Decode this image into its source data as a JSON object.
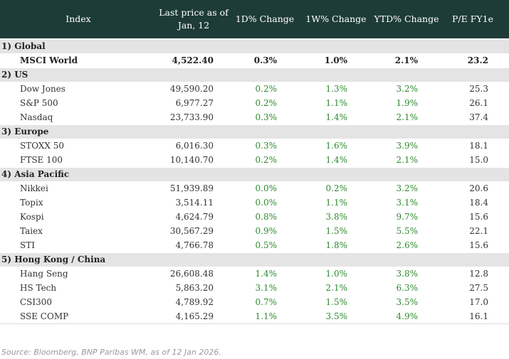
{
  "header": {
    "columns": [
      "Index",
      "Last price as of Jan, 12",
      "1D% Change",
      "1W% Change",
      "YTD% Change",
      "P/E FY1e"
    ]
  },
  "sections": [
    {
      "title": "1) Global",
      "rows": [
        [
          "MSCI World",
          "4,522.40",
          "0.3%",
          "1.0%",
          "2.1%",
          "23.2"
        ]
      ]
    },
    {
      "title": "2) US",
      "rows": [
        [
          "Dow Jones",
          "49,590.20",
          "0.2%",
          "1.3%",
          "3.2%",
          "25.3"
        ],
        [
          "S&P 500",
          "6,977.27",
          "0.2%",
          "1.1%",
          "1.9%",
          "26.1"
        ],
        [
          "Nasdaq",
          "23,733.90",
          "0.3%",
          "1.4%",
          "2.1%",
          "37.4"
        ]
      ]
    },
    {
      "title": "3) Europe",
      "rows": [
        [
          "STOXX 50",
          "6,016.30",
          "0.3%",
          "1.6%",
          "3.9%",
          "18.1"
        ],
        [
          "FTSE 100",
          "10,140.70",
          "0.2%",
          "1.4%",
          "2.1%",
          "15.0"
        ]
      ]
    },
    {
      "title": "4) Asia Pacific",
      "rows": [
        [
          "Nikkei",
          "51,939.89",
          "0.0%",
          "0.2%",
          "3.2%",
          "20.6"
        ],
        [
          "Topix",
          "3,514.11",
          "0.0%",
          "1.1%",
          "3.1%",
          "18.4"
        ],
        [
          "Kospi",
          "4,624.79",
          "0.8%",
          "3.8%",
          "9.7%",
          "15.6"
        ],
        [
          "Taiex",
          "30,567.29",
          "0.9%",
          "1.5%",
          "5.5%",
          "22.1"
        ],
        [
          "STI",
          "4,766.78",
          "0.5%",
          "1.8%",
          "2.6%",
          "15.6"
        ]
      ]
    },
    {
      "title": "5) Hong Kong / China",
      "rows": [
        [
          "Hang Seng",
          "26,608.48",
          "1.4%",
          "1.0%",
          "3.8%",
          "12.8"
        ],
        [
          "HS Tech",
          "5,863.20",
          "3.1%",
          "2.1%",
          "6.3%",
          "27.5"
        ],
        [
          "CSI300",
          "4,789.92",
          "0.7%",
          "1.5%",
          "3.5%",
          "17.0"
        ],
        [
          "SSE COMP",
          "4,165.29",
          "1.1%",
          "3.5%",
          "4.9%",
          "16.1"
        ]
      ]
    }
  ],
  "source": "Source: Bloomberg, BNP Paribas WM, as of 12 Jan 2026."
}
